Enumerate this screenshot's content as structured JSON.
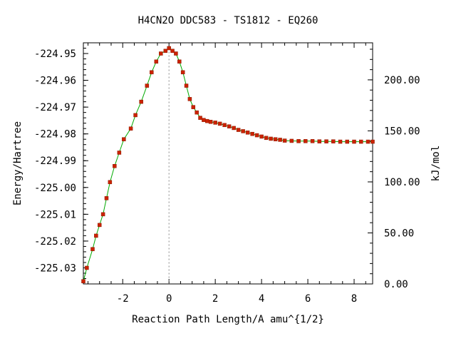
{
  "chart_data": {
    "type": "line",
    "title": "H4CN2O   DDC583 - TS1812 - EQ260",
    "xlabel": "Reaction Path Length/A amu^{1/2}",
    "ylabel": "Energy/Hartree",
    "y2label": "kJ/mol",
    "xlim": [
      -3.7,
      8.8
    ],
    "ylim": [
      -225.036,
      -224.946
    ],
    "y2lim": [
      0.0,
      236.3
    ],
    "x_ticks": [
      "-2",
      "0",
      "2",
      "4",
      "6",
      "8"
    ],
    "x_tick_values": [
      -2,
      0,
      2,
      4,
      6,
      8
    ],
    "y_ticks": [
      "-224.95",
      "-224.96",
      "-224.97",
      "-224.98",
      "-224.99",
      "-225.00",
      "-225.01",
      "-225.02",
      "-225.03"
    ],
    "y_tick_values": [
      -224.95,
      -224.96,
      -224.97,
      -224.98,
      -224.99,
      -225.0,
      -225.01,
      -225.02,
      -225.03
    ],
    "y2_ticks": [
      "200.00",
      "150.00",
      "100.00",
      "50.00",
      "0.00"
    ],
    "y2_tick_values": [
      200,
      150,
      100,
      50,
      0
    ],
    "ts_x": 0.0,
    "line_color": "#00aa00",
    "marker_color": "#cc2200",
    "dashed_line_color": "#888888",
    "grid": false,
    "series": [
      {
        "x": [
          -3.7,
          -3.55,
          -3.3,
          -3.15,
          -3.0,
          -2.85,
          -2.7,
          -2.55,
          -2.35,
          -2.15,
          -1.95,
          -1.65,
          -1.45,
          -1.2,
          -0.95,
          -0.75,
          -0.55,
          -0.35,
          -0.15,
          0.0,
          0.15,
          0.3,
          0.45,
          0.6,
          0.75,
          0.9,
          1.05,
          1.2,
          1.35,
          1.5,
          1.65,
          1.8,
          2.0,
          2.2,
          2.4,
          2.6,
          2.8,
          3.0,
          3.2,
          3.4,
          3.6,
          3.8,
          4.0,
          4.2,
          4.4,
          4.6,
          4.8,
          5.0,
          5.3,
          5.6,
          5.9,
          6.2,
          6.5,
          6.8,
          7.1,
          7.4,
          7.7,
          8.0,
          8.3,
          8.6,
          8.8
        ],
        "y": [
          -225.035,
          -225.03,
          -225.023,
          -225.018,
          -225.014,
          -225.01,
          -225.004,
          -224.998,
          -224.992,
          -224.987,
          -224.982,
          -224.978,
          -224.973,
          -224.968,
          -224.962,
          -224.957,
          -224.953,
          -224.95,
          -224.949,
          -224.948,
          -224.949,
          -224.95,
          -224.953,
          -224.957,
          -224.962,
          -224.967,
          -224.97,
          -224.972,
          -224.974,
          -224.9748,
          -224.9752,
          -224.9755,
          -224.9758,
          -224.9762,
          -224.9767,
          -224.9772,
          -224.9778,
          -224.9785,
          -224.979,
          -224.9795,
          -224.98,
          -224.9805,
          -224.981,
          -224.9815,
          -224.9818,
          -224.982,
          -224.9822,
          -224.9825,
          -224.9826,
          -224.9827,
          -224.9827,
          -224.9827,
          -224.9828,
          -224.9828,
          -224.9828,
          -224.9829,
          -224.9829,
          -224.9829,
          -224.9829,
          -224.9829,
          -224.9829
        ]
      }
    ]
  }
}
